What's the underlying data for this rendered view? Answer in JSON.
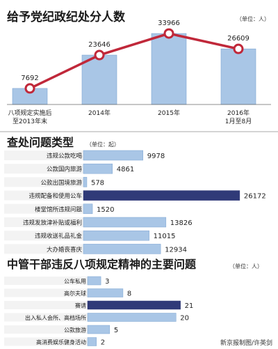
{
  "colors": {
    "bar_light": "#a9c6e6",
    "bar_light_stroke": "#7fa6d2",
    "bar_dark": "#303a78",
    "line": "#c0283a",
    "row_bg": "#f3f3f3",
    "divider": "#aaaaaa"
  },
  "chart_data": [
    {
      "type": "bar",
      "title": "给予党纪政纪处分人数",
      "unit": "（单位：人）",
      "categories": [
        "八项规定实施后\n至2013年末",
        "2014年",
        "2015年",
        "2016年\n1月至8月"
      ],
      "values": [
        7692,
        23646,
        33966,
        26609
      ],
      "overlay": "line",
      "ylim": [
        0,
        40000
      ],
      "xlabel": "",
      "ylabel": "",
      "grid": false,
      "legend": "none"
    },
    {
      "type": "bar",
      "orientation": "horizontal",
      "title": "查处问题类型",
      "unit": "（单位：起）",
      "categories": [
        "违规公款吃喝",
        "公款国内旅游",
        "公款出国境旅游",
        "违规配备和使用公车",
        "楼堂馆所违规问题",
        "违规发放津补贴或福利",
        "违规收送礼品礼金",
        "大办婚丧喜庆"
      ],
      "values": [
        9978,
        4861,
        578,
        26172,
        1520,
        13826,
        11015,
        12934
      ],
      "highlight_index": 3,
      "xlim": [
        0,
        27000
      ],
      "grid": false,
      "legend": "none"
    },
    {
      "type": "bar",
      "orientation": "horizontal",
      "title": "中管干部违反八项规定精神的主要问题",
      "unit": "（单位：人）",
      "categories": [
        "公车私用",
        "高尔夫球",
        "赛请",
        "出入私人会所、高档场所",
        "公款旅游",
        "高消费娱乐健身活动"
      ],
      "values": [
        3,
        8,
        21,
        20,
        5,
        2
      ],
      "highlight_index": 2,
      "xlim": [
        0,
        22
      ],
      "grid": false,
      "legend": "none"
    }
  ],
  "credit": "新京报制图/许英剑"
}
